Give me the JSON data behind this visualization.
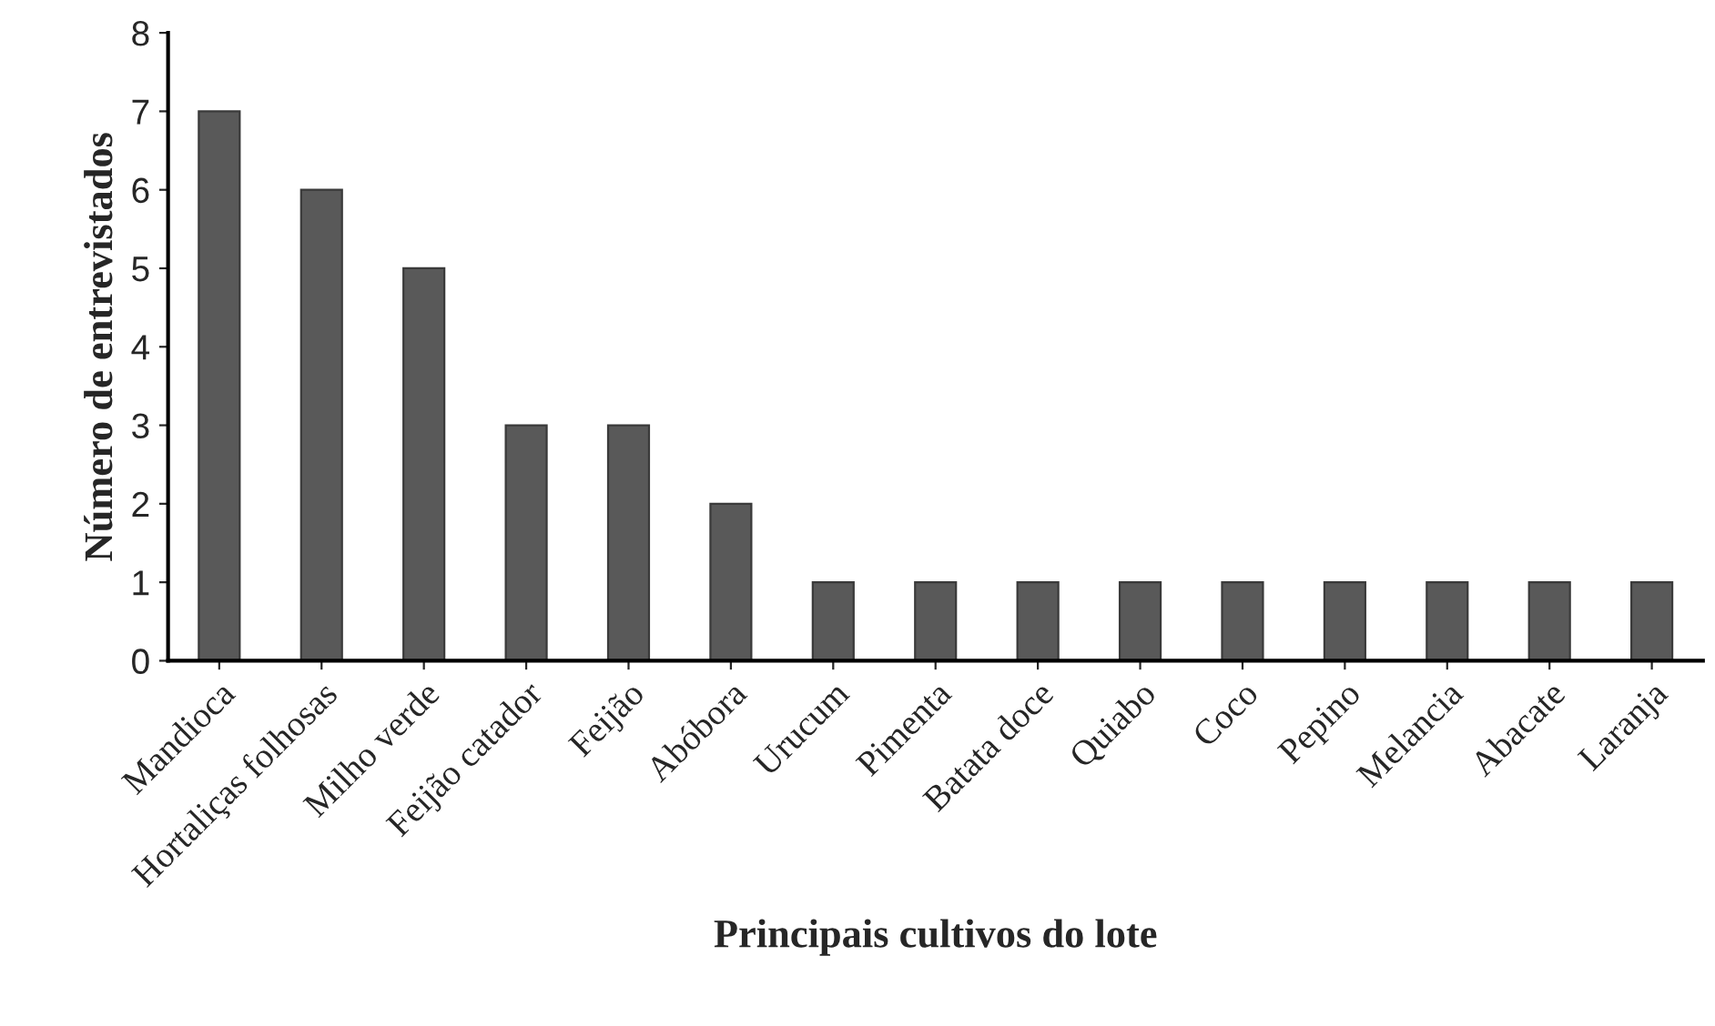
{
  "chart_data": {
    "type": "bar",
    "xlabel": "Principais cultivos do lote",
    "ylabel": "Número de entrevistados",
    "categories": [
      "Mandioca",
      "Hortaliças folhosas",
      "Milho verde",
      "Feijão catador",
      "Feijão",
      "Abóbora",
      "Urucum",
      "Pimenta",
      "Batata doce",
      "Quiabo",
      "Coco",
      "Pepino",
      "Melancia",
      "Abacate",
      "Laranja"
    ],
    "values": [
      7,
      6,
      5,
      3,
      3,
      2,
      1,
      1,
      1,
      1,
      1,
      1,
      1,
      1,
      1
    ],
    "color": "#595959",
    "ylim": [
      0,
      8
    ],
    "yticks": [
      0,
      1,
      2,
      3,
      4,
      5,
      6,
      7,
      8
    ],
    "grid": false,
    "legend": false
  }
}
